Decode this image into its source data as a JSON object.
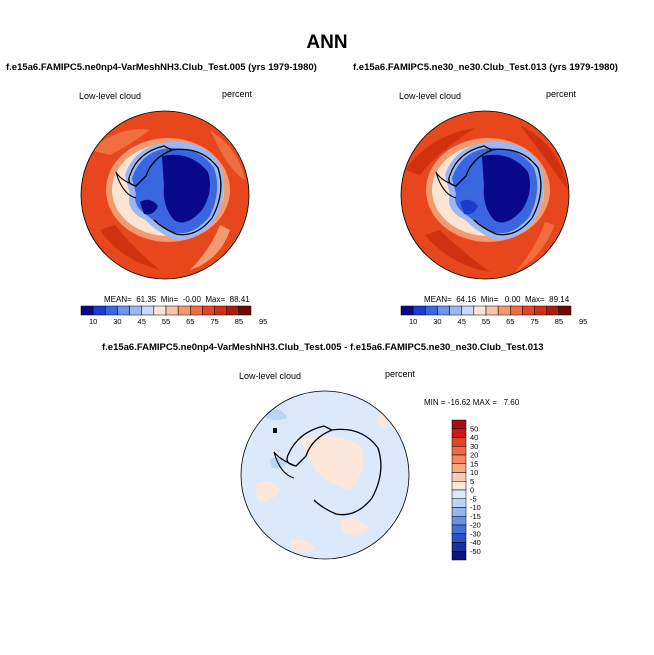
{
  "page": {
    "title": "ANN"
  },
  "panels": [
    {
      "run_title": "f.e15a6.FAMIPC5.ne0np4-VarMeshNH3.Club_Test.005 (yrs 1979-1980)",
      "variable": "Low-level cloud",
      "units": "percent",
      "stats_text": "MEAN=  61.35  Min=  -0.00  Max=  88.41"
    },
    {
      "run_title": "f.e15a6.FAMIPC5.ne30_ne30.Club_Test.013 (yrs 1979-1980)",
      "variable": "Low-level cloud",
      "units": "percent",
      "stats_text": "MEAN=  64.16  Min=   0.00  Max=  89.14"
    },
    {
      "run_title": "f.e15a6.FAMIPC5.ne0np4-VarMeshNH3.Club_Test.005 - f.e15a6.FAMIPC5.ne30_ne30.Club_Test.013",
      "variable": "Low-level cloud",
      "units": "percent",
      "stats_text": "MIN = -16.62 MAX =   7.60"
    }
  ],
  "chart_data": [
    {
      "type": "heatmap",
      "title": "f.e15a6.FAMIPC5.ne0np4-VarMeshNH3.Club_Test.005 (yrs 1979-1980)",
      "projection": "south polar stereographic",
      "variable": "Low-level cloud",
      "units": "percent",
      "mean": 61.35,
      "min": -0.0,
      "max": 88.41,
      "colorbar": {
        "orientation": "horizontal",
        "levels": [
          "10",
          "30",
          "45",
          "55",
          "65",
          "75",
          "85",
          "95"
        ],
        "colors": [
          "#08088a",
          "#1a3bcc",
          "#3a66e0",
          "#6e93ee",
          "#9cb8f4",
          "#c8d8fa",
          "#fbe4d4",
          "#f7c3a8",
          "#f49a72",
          "#ef6d3e",
          "#e8461c",
          "#d03210",
          "#a82008",
          "#6e0a02"
        ]
      }
    },
    {
      "type": "heatmap",
      "title": "f.e15a6.FAMIPC5.ne30_ne30.Club_Test.013 (yrs 1979-1980)",
      "projection": "south polar stereographic",
      "variable": "Low-level cloud",
      "units": "percent",
      "mean": 64.16,
      "min": 0.0,
      "max": 89.14,
      "colorbar": {
        "orientation": "horizontal",
        "levels": [
          "10",
          "30",
          "45",
          "55",
          "65",
          "75",
          "85",
          "95"
        ],
        "colors": [
          "#08088a",
          "#1a3bcc",
          "#3a66e0",
          "#6e93ee",
          "#9cb8f4",
          "#c8d8fa",
          "#fbe4d4",
          "#f7c3a8",
          "#f49a72",
          "#ef6d3e",
          "#e8461c",
          "#d03210",
          "#a82008",
          "#6e0a02"
        ]
      }
    },
    {
      "type": "heatmap",
      "title": "f.e15a6.FAMIPC5.ne0np4-VarMeshNH3.Club_Test.005 - f.e15a6.FAMIPC5.ne30_ne30.Club_Test.013",
      "projection": "south polar stereographic",
      "variable": "Low-level cloud",
      "units": "percent",
      "min": -16.62,
      "max": 7.6,
      "colorbar": {
        "orientation": "vertical",
        "levels": [
          "50",
          "40",
          "30",
          "20",
          "15",
          "10",
          "5",
          "0",
          "-5",
          "-10",
          "-15",
          "-20",
          "-30",
          "-40",
          "-50"
        ],
        "colors": [
          "#a50f15",
          "#cb181d",
          "#e0442a",
          "#ef6a43",
          "#f48a5c",
          "#f8aa83",
          "#fbcbb0",
          "#fde6da",
          "#dce9fb",
          "#bcd4f6",
          "#93b6ef",
          "#6a93e6",
          "#4470da",
          "#2a4fc8",
          "#1a2fa0",
          "#0b1478"
        ]
      }
    }
  ]
}
